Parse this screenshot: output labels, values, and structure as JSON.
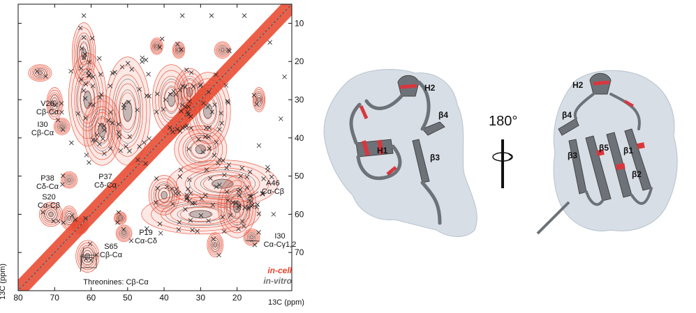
{
  "chart_data": {
    "type": "heatmap",
    "subtype": "2D 13C-13C NMR correlation spectrum",
    "x_axis": {
      "label": "13C (ppm)",
      "reversed": true,
      "range": [
        80,
        5
      ],
      "ticks": [
        80,
        70,
        60,
        50,
        40,
        30,
        20
      ]
    },
    "y_axis": {
      "label": "13C (ppm)",
      "reversed": true,
      "range": [
        5,
        80
      ],
      "ticks": [
        10,
        20,
        30,
        40,
        50,
        60,
        70
      ]
    },
    "series": [
      {
        "name": "in-cell",
        "color": "#e8442a"
      },
      {
        "name": "in-vitro",
        "color": "#6f6f6f"
      }
    ],
    "legend_position": "bottom-right",
    "annotations": [
      {
        "lines": [
          "V26",
          "Cβ-Cα"
        ]
      },
      {
        "lines": [
          "I30",
          "Cβ-Cα"
        ]
      },
      {
        "lines": [
          "P38",
          "Cδ-Cα"
        ]
      },
      {
        "lines": [
          "P37",
          "Cδ-Cα"
        ]
      },
      {
        "lines": [
          "S20",
          "Cα-Cβ"
        ]
      },
      {
        "lines": [
          "A46",
          "Cα-Cβ"
        ]
      },
      {
        "lines": [
          "P19",
          "Cα-Cδ"
        ]
      },
      {
        "lines": [
          "S65",
          "Cβ-Cα"
        ]
      },
      {
        "lines": [
          "I30",
          "Cα-Cγ1,2"
        ]
      },
      {
        "lines": [
          "Threonines: Cβ-Cα"
        ]
      }
    ]
  },
  "structure_views": {
    "rotation_label": "180°",
    "left_view_labels": [
      "H2",
      "β4",
      "H1",
      "β3"
    ],
    "right_view_labels": [
      "H2",
      "β4",
      "β3",
      "β5",
      "β1",
      "β2"
    ],
    "colors": {
      "cartoon": "#6d7278",
      "highlight": "#d9363e",
      "surface": "#c9d3de"
    }
  }
}
